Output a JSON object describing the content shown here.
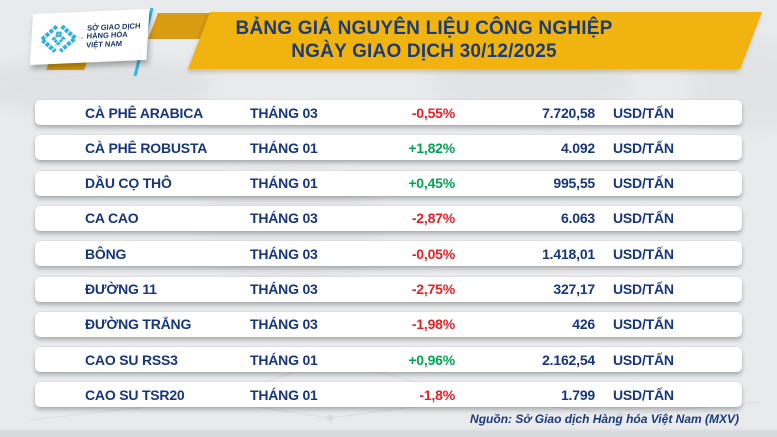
{
  "header": {
    "logo": {
      "org_lines": [
        "SỞ GIAO DỊCH",
        "HÀNG HÓA",
        "VIỆT NAM"
      ],
      "trademark": "™"
    },
    "title_line1": "BẢNG GIÁ NGUYÊN LIỆU CÔNG NGHIỆP",
    "title_line2": "NGÀY GIAO DỊCH 30/12/2025"
  },
  "table": {
    "rows": [
      {
        "name": "CÀ PHÊ ARABICA",
        "month": "THÁNG 03",
        "change": "-0,55%",
        "direction": "down",
        "price": "7.720,58",
        "unit": "USD/TẤN"
      },
      {
        "name": "CÀ PHÊ ROBUSTA",
        "month": "THÁNG 01",
        "change": "+1,82%",
        "direction": "up",
        "price": "4.092",
        "unit": "USD/TẤN"
      },
      {
        "name": "DẦU CỌ THÔ",
        "month": "THÁNG 01",
        "change": "+0,45%",
        "direction": "up",
        "price": "995,55",
        "unit": "USD/TẤN"
      },
      {
        "name": "CA CAO",
        "month": "THÁNG 03",
        "change": "-2,87%",
        "direction": "down",
        "price": "6.063",
        "unit": "USD/TẤN"
      },
      {
        "name": "BÔNG",
        "month": "THÁNG 03",
        "change": "-0,05%",
        "direction": "down",
        "price": "1.418,01",
        "unit": "USD/TẤN"
      },
      {
        "name": "ĐƯỜNG 11",
        "month": "THÁNG 03",
        "change": "-2,75%",
        "direction": "down",
        "price": "327,17",
        "unit": "USD/TẤN"
      },
      {
        "name": "ĐƯỜNG TRẮNG",
        "month": "THÁNG 03",
        "change": "-1,98%",
        "direction": "down",
        "price": "426",
        "unit": "USD/TẤN"
      },
      {
        "name": "CAO SU RSS3",
        "month": "THÁNG 01",
        "change": "+0,96%",
        "direction": "up",
        "price": "2.162,54",
        "unit": "USD/TẤN"
      },
      {
        "name": "CAO SU TSR20",
        "month": "THÁNG 01",
        "change": "-1,8%",
        "direction": "down",
        "price": "1.799",
        "unit": "USD/TẤN"
      }
    ]
  },
  "footer": {
    "source": "Nguồn: Sở Giao dịch Hàng hóa Việt Nam (MXV)"
  },
  "colors": {
    "accent_yellow": "#F0B30F",
    "gold": "#D89B12",
    "navy_text": "#16357C",
    "title_navy": "#1D3B73",
    "red_down": "#EC1C24",
    "green_up": "#00A551",
    "logo_blue": "#2FB0E5",
    "background": "#E9EAEC"
  },
  "chart_data": {
    "type": "table",
    "title": "BẢNG GIÁ NGUYÊN LIỆU CÔNG NGHIỆP — NGÀY GIAO DỊCH 30/12/2025",
    "rows": [
      [
        "CÀ PHÊ ARABICA",
        "THÁNG 03",
        "-0,55%",
        "7.720,58",
        "USD/TẤN"
      ],
      [
        "CÀ PHÊ ROBUSTA",
        "THÁNG 01",
        "+1,82%",
        "4.092",
        "USD/TẤN"
      ],
      [
        "DẦU CỌ THÔ",
        "THÁNG 01",
        "+0,45%",
        "995,55",
        "USD/TẤN"
      ],
      [
        "CA CAO",
        "THÁNG 03",
        "-2,87%",
        "6.063",
        "USD/TẤN"
      ],
      [
        "BÔNG",
        "THÁNG 03",
        "-0,05%",
        "1.418,01",
        "USD/TẤN"
      ],
      [
        "ĐƯỜNG 11",
        "THÁNG 03",
        "-2,75%",
        "327,17",
        "USD/TẤN"
      ],
      [
        "ĐƯỜNG TRẮNG",
        "THÁNG 03",
        "-1,98%",
        "426",
        "USD/TẤN"
      ],
      [
        "CAO SU RSS3",
        "THÁNG 01",
        "+0,96%",
        "2.162,54",
        "USD/TẤN"
      ],
      [
        "CAO SU TSR20",
        "THÁNG 01",
        "-1,8%",
        "1.799",
        "USD/TẤN"
      ]
    ],
    "source_note": "Nguồn: Sở Giao dịch Hàng hóa Việt Nam (MXV)"
  }
}
